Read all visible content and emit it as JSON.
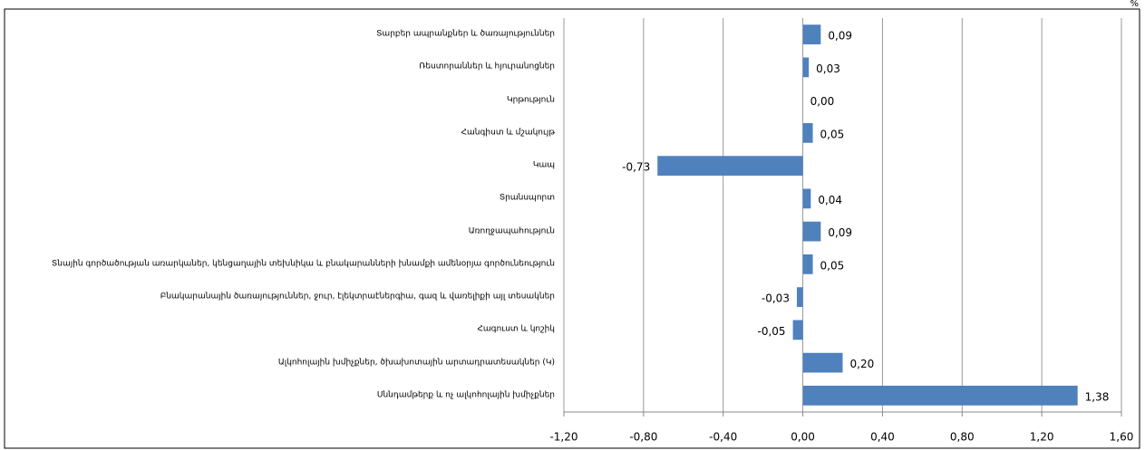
{
  "chart_data": {
    "type": "bar",
    "orientation": "horizontal",
    "unit": "%",
    "categories": [
      "Տարբեր ապրանքներ և ծառայություններ",
      "Ռեստորաններ և հյուրանոցներ",
      "Կրթություն",
      "Հանգիստ և մշակույթ",
      "Կապ",
      "Տրանսպորտ",
      "Առողջապահություն",
      "Տնային գործածության առարկաներ, կենցաղային տեխնիկա և բնակարանների խնամքի ամենօրյա գործունեություն",
      "Բնակարանային ծառայություններ, ջուր, էլեկտրաէներգիա, գազ և վառելիքի այլ տեսակներ",
      "Հագուստ և կոշիկ",
      "Ալկոհոլային խմիչքներ, ծխախոտային արտադրատեսակներ (Կ)",
      "Սննդամթերք և ոչ ալկոհոլային խմիչքներ"
    ],
    "values": [
      0.09,
      0.03,
      0.0,
      0.05,
      -0.73,
      0.04,
      0.09,
      0.05,
      -0.03,
      -0.05,
      0.2,
      1.38
    ],
    "value_labels": [
      "0,09",
      "0,03",
      "0,00",
      "0,05",
      "-0,73",
      "0,04",
      "0,09",
      "0,05",
      "-0,03",
      "-0,05",
      "0,20",
      "1,38"
    ],
    "color": "#4f81bd",
    "xlim": [
      -1.2,
      1.6
    ],
    "xticks": [
      {
        "value": -1.2,
        "label": "-1,20"
      },
      {
        "value": -0.8,
        "label": "-0,80"
      },
      {
        "value": -0.4,
        "label": "-0,40"
      },
      {
        "value": 0,
        "label": "0,00"
      },
      {
        "value": 0.4,
        "label": "0,40"
      },
      {
        "value": 0.8,
        "label": "0,80"
      },
      {
        "value": 1.2,
        "label": "1,20"
      },
      {
        "value": 1.6,
        "label": "1,60"
      }
    ],
    "grid": true
  }
}
